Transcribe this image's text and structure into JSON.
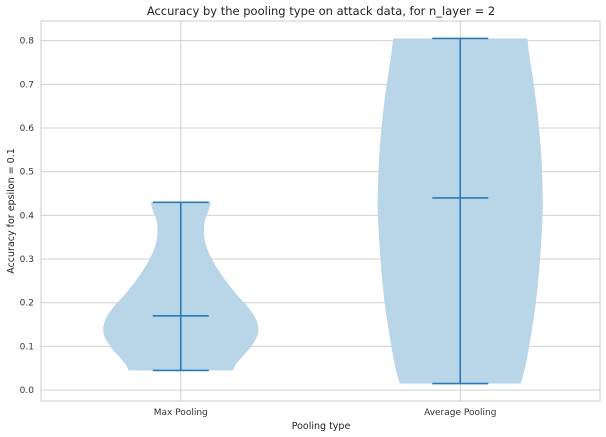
{
  "chart_data": {
    "type": "violin",
    "title": "Accuracy by the pooling type on attack data, for n_layer = 2",
    "xlabel": "Pooling type",
    "ylabel": "Accuracy for epsilon = 0.1",
    "categories": [
      "Max Pooling",
      "Average Pooling"
    ],
    "ylim": [
      -0.025,
      0.845
    ],
    "yticks": [
      0.0,
      0.1,
      0.2,
      0.3,
      0.4,
      0.5,
      0.6,
      0.7,
      0.8
    ],
    "ytick_labels": [
      "0.0",
      "0.1",
      "0.2",
      "0.3",
      "0.4",
      "0.5",
      "0.6",
      "0.7",
      "0.8"
    ],
    "grid": true,
    "colors": {
      "body": "#b9d5e8",
      "line": "#2a7ab8",
      "grid": "#d0d0d0",
      "frame": "#cccccc"
    },
    "violins": [
      {
        "category": "Max Pooling",
        "min": 0.045,
        "median": 0.17,
        "max": 0.43,
        "density": [
          [
            0.045,
            0.62
          ],
          [
            0.06,
            0.66
          ],
          [
            0.08,
            0.75
          ],
          [
            0.1,
            0.84
          ],
          [
            0.13,
            0.92
          ],
          [
            0.16,
            0.9
          ],
          [
            0.19,
            0.8
          ],
          [
            0.22,
            0.66
          ],
          [
            0.26,
            0.5
          ],
          [
            0.3,
            0.37
          ],
          [
            0.34,
            0.29
          ],
          [
            0.38,
            0.28
          ],
          [
            0.41,
            0.33
          ],
          [
            0.43,
            0.36
          ]
        ]
      },
      {
        "category": "Average Pooling",
        "min": 0.015,
        "median": 0.44,
        "max": 0.805,
        "density": [
          [
            0.015,
            0.72
          ],
          [
            0.05,
            0.77
          ],
          [
            0.1,
            0.82
          ],
          [
            0.2,
            0.9
          ],
          [
            0.3,
            0.95
          ],
          [
            0.4,
            0.98
          ],
          [
            0.46,
            0.98
          ],
          [
            0.55,
            0.96
          ],
          [
            0.65,
            0.91
          ],
          [
            0.72,
            0.86
          ],
          [
            0.77,
            0.82
          ],
          [
            0.805,
            0.8
          ]
        ]
      }
    ]
  }
}
